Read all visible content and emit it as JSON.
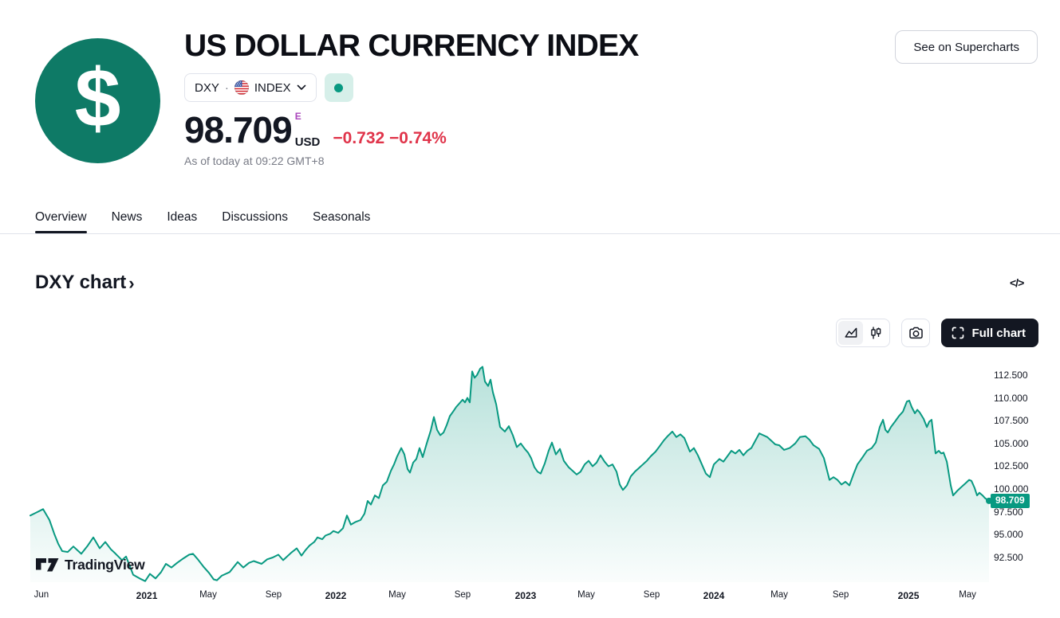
{
  "colors": {
    "accent": "#089981",
    "red": "#e0344a",
    "purple": "#ab47bc",
    "logo_bg": "#0e7a66"
  },
  "header": {
    "title": "US DOLLAR CURRENCY INDEX",
    "logo_symbol": "$",
    "symbol_button": {
      "ticker": "DXY",
      "separator": "·",
      "exchange": "INDEX"
    },
    "price": {
      "value": "98.709",
      "flag": "E",
      "currency": "USD",
      "change": "−0.732",
      "change_pct": "−0.74%"
    },
    "timestamp": "As of today at 09:22 GMT+8",
    "supercharts_label": "See on Supercharts"
  },
  "tabs": {
    "items": [
      "Overview",
      "News",
      "Ideas",
      "Discussions",
      "Seasonals"
    ],
    "active": "Overview"
  },
  "section": {
    "title": "DXY chart",
    "arrow": "›",
    "embed_icon": "</>"
  },
  "toolbar": {
    "full_chart_label": "Full chart"
  },
  "watermark": {
    "text": "TradingView"
  },
  "chart_data": {
    "type": "area",
    "symbol": "DXY",
    "title": "DXY chart",
    "x_range": [
      "2020-05",
      "2025-06"
    ],
    "ylim": [
      89.79,
      114.33
    ],
    "last_value": 98.709,
    "last_value_label": "98.709",
    "grid": false,
    "y_ticks": [
      {
        "label": "112.500",
        "v": 112.5
      },
      {
        "label": "110.000",
        "v": 110.0
      },
      {
        "label": "107.500",
        "v": 107.5
      },
      {
        "label": "105.000",
        "v": 105.0
      },
      {
        "label": "102.500",
        "v": 102.5
      },
      {
        "label": "100.000",
        "v": 100.0
      },
      {
        "label": "97.500",
        "v": 97.5
      },
      {
        "label": "95.000",
        "v": 95.0
      },
      {
        "label": "92.500",
        "v": 92.5
      }
    ],
    "x_ticks": [
      {
        "label": "Jun",
        "f": 0.0116
      },
      {
        "label": "2021",
        "f": 0.1215,
        "year": true
      },
      {
        "label": "May",
        "f": 0.1855
      },
      {
        "label": "Sep",
        "f": 0.2537
      },
      {
        "label": "2022",
        "f": 0.3186,
        "year": true
      },
      {
        "label": "May",
        "f": 0.3827
      },
      {
        "label": "Sep",
        "f": 0.4509
      },
      {
        "label": "2023",
        "f": 0.5166,
        "year": true
      },
      {
        "label": "May",
        "f": 0.5799
      },
      {
        "label": "Sep",
        "f": 0.6481
      },
      {
        "label": "2024",
        "f": 0.713,
        "year": true
      },
      {
        "label": "May",
        "f": 0.7812
      },
      {
        "label": "Sep",
        "f": 0.8453
      },
      {
        "label": "2025",
        "f": 0.916,
        "year": true
      },
      {
        "label": "May",
        "f": 0.9776
      }
    ],
    "points": [
      [
        0.0,
        97.1
      ],
      [
        0.0058,
        97.4
      ],
      [
        0.0133,
        97.8
      ],
      [
        0.02,
        96.6
      ],
      [
        0.025,
        95.1
      ],
      [
        0.0291,
        94.0
      ],
      [
        0.0333,
        93.2
      ],
      [
        0.0391,
        93.1
      ],
      [
        0.0449,
        93.7
      ],
      [
        0.0532,
        92.9
      ],
      [
        0.0599,
        93.8
      ],
      [
        0.0657,
        94.7
      ],
      [
        0.0724,
        93.5
      ],
      [
        0.0782,
        94.2
      ],
      [
        0.084,
        93.4
      ],
      [
        0.089,
        92.9
      ],
      [
        0.0957,
        92.2
      ],
      [
        0.0998,
        92.6
      ],
      [
        0.1073,
        90.6
      ],
      [
        0.114,
        90.2
      ],
      [
        0.1198,
        89.9
      ],
      [
        0.1248,
        90.7
      ],
      [
        0.1306,
        90.2
      ],
      [
        0.1364,
        90.9
      ],
      [
        0.1414,
        91.8
      ],
      [
        0.1472,
        91.4
      ],
      [
        0.1531,
        91.9
      ],
      [
        0.1597,
        92.4
      ],
      [
        0.1656,
        92.8
      ],
      [
        0.1697,
        92.9
      ],
      [
        0.1747,
        92.3
      ],
      [
        0.1805,
        91.5
      ],
      [
        0.1864,
        90.8
      ],
      [
        0.1913,
        90.1
      ],
      [
        0.1947,
        90.0
      ],
      [
        0.1997,
        90.5
      ],
      [
        0.208,
        90.9
      ],
      [
        0.2163,
        92.0
      ],
      [
        0.2221,
        91.4
      ],
      [
        0.228,
        91.9
      ],
      [
        0.233,
        92.1
      ],
      [
        0.2413,
        91.8
      ],
      [
        0.2471,
        92.3
      ],
      [
        0.2529,
        92.5
      ],
      [
        0.2587,
        92.8
      ],
      [
        0.2637,
        92.2
      ],
      [
        0.272,
        93.0
      ],
      [
        0.2779,
        93.5
      ],
      [
        0.2829,
        92.7
      ],
      [
        0.287,
        93.3
      ],
      [
        0.2912,
        93.8
      ],
      [
        0.2962,
        94.2
      ],
      [
        0.2995,
        94.7
      ],
      [
        0.3045,
        94.5
      ],
      [
        0.3078,
        94.9
      ],
      [
        0.3128,
        95.1
      ],
      [
        0.3161,
        95.4
      ],
      [
        0.3211,
        95.2
      ],
      [
        0.3261,
        95.7
      ],
      [
        0.3303,
        97.1
      ],
      [
        0.3344,
        96.1
      ],
      [
        0.3394,
        96.4
      ],
      [
        0.3444,
        96.6
      ],
      [
        0.3486,
        97.3
      ],
      [
        0.3519,
        98.7
      ],
      [
        0.3552,
        98.3
      ],
      [
        0.3594,
        99.3
      ],
      [
        0.3636,
        99.0
      ],
      [
        0.3677,
        100.4
      ],
      [
        0.3719,
        100.8
      ],
      [
        0.3761,
        102.0
      ],
      [
        0.3794,
        102.7
      ],
      [
        0.3827,
        103.6
      ],
      [
        0.3869,
        104.5
      ],
      [
        0.3902,
        103.8
      ],
      [
        0.3935,
        102.2
      ],
      [
        0.396,
        101.8
      ],
      [
        0.3993,
        102.9
      ],
      [
        0.4027,
        103.3
      ],
      [
        0.406,
        104.5
      ],
      [
        0.4093,
        103.5
      ],
      [
        0.4135,
        105.0
      ],
      [
        0.4176,
        106.4
      ],
      [
        0.421,
        107.9
      ],
      [
        0.4243,
        106.5
      ],
      [
        0.4276,
        105.9
      ],
      [
        0.431,
        106.2
      ],
      [
        0.4343,
        107.0
      ],
      [
        0.4376,
        108.0
      ],
      [
        0.441,
        108.5
      ],
      [
        0.4443,
        109.0
      ],
      [
        0.4476,
        109.4
      ],
      [
        0.4509,
        109.8
      ],
      [
        0.4534,
        109.5
      ],
      [
        0.4559,
        110.0
      ],
      [
        0.4584,
        109.5
      ],
      [
        0.4609,
        112.9
      ],
      [
        0.4634,
        112.2
      ],
      [
        0.4659,
        112.5
      ],
      [
        0.4692,
        113.2
      ],
      [
        0.4717,
        113.4
      ],
      [
        0.4742,
        111.8
      ],
      [
        0.4775,
        111.3
      ],
      [
        0.48,
        112.0
      ],
      [
        0.4825,
        110.6
      ],
      [
        0.4859,
        109.3
      ],
      [
        0.49,
        106.8
      ],
      [
        0.495,
        106.3
      ],
      [
        0.4992,
        106.9
      ],
      [
        0.5033,
        105.9
      ],
      [
        0.5075,
        104.6
      ],
      [
        0.5116,
        105.0
      ],
      [
        0.5158,
        104.4
      ],
      [
        0.5191,
        104.0
      ],
      [
        0.5224,
        103.4
      ],
      [
        0.5258,
        102.4
      ],
      [
        0.5291,
        101.9
      ],
      [
        0.5324,
        101.7
      ],
      [
        0.5366,
        102.8
      ],
      [
        0.5407,
        104.2
      ],
      [
        0.5441,
        105.1
      ],
      [
        0.5482,
        103.8
      ],
      [
        0.5524,
        104.4
      ],
      [
        0.5565,
        103.1
      ],
      [
        0.5615,
        102.4
      ],
      [
        0.5657,
        102.0
      ],
      [
        0.5699,
        101.6
      ],
      [
        0.574,
        101.9
      ],
      [
        0.5782,
        102.7
      ],
      [
        0.5824,
        103.1
      ],
      [
        0.5865,
        102.5
      ],
      [
        0.5907,
        102.9
      ],
      [
        0.5948,
        103.7
      ],
      [
        0.599,
        103.0
      ],
      [
        0.6031,
        102.5
      ],
      [
        0.6073,
        102.7
      ],
      [
        0.6115,
        101.9
      ],
      [
        0.6148,
        100.5
      ],
      [
        0.6181,
        99.9
      ],
      [
        0.6223,
        100.4
      ],
      [
        0.6264,
        101.4
      ],
      [
        0.6306,
        101.9
      ],
      [
        0.6348,
        102.3
      ],
      [
        0.6389,
        102.7
      ],
      [
        0.6431,
        103.1
      ],
      [
        0.6472,
        103.6
      ],
      [
        0.6522,
        104.1
      ],
      [
        0.6564,
        104.7
      ],
      [
        0.6606,
        105.3
      ],
      [
        0.6647,
        105.8
      ],
      [
        0.6697,
        106.3
      ],
      [
        0.6739,
        105.7
      ],
      [
        0.678,
        106.0
      ],
      [
        0.6822,
        105.6
      ],
      [
        0.688,
        104.1
      ],
      [
        0.6922,
        104.5
      ],
      [
        0.6963,
        103.7
      ],
      [
        0.7005,
        102.7
      ],
      [
        0.7047,
        101.7
      ],
      [
        0.7088,
        101.3
      ],
      [
        0.713,
        102.7
      ],
      [
        0.7188,
        103.3
      ],
      [
        0.723,
        103.0
      ],
      [
        0.7271,
        103.6
      ],
      [
        0.7313,
        104.2
      ],
      [
        0.7354,
        103.9
      ],
      [
        0.7396,
        104.3
      ],
      [
        0.7438,
        103.7
      ],
      [
        0.7479,
        104.2
      ],
      [
        0.7521,
        104.5
      ],
      [
        0.7562,
        105.3
      ],
      [
        0.7604,
        106.1
      ],
      [
        0.7646,
        105.9
      ],
      [
        0.7687,
        105.7
      ],
      [
        0.7729,
        105.3
      ],
      [
        0.777,
        104.9
      ],
      [
        0.7812,
        104.8
      ],
      [
        0.7862,
        104.3
      ],
      [
        0.792,
        104.5
      ],
      [
        0.7978,
        105.0
      ],
      [
        0.8028,
        105.7
      ],
      [
        0.8086,
        105.8
      ],
      [
        0.8128,
        105.4
      ],
      [
        0.817,
        104.8
      ],
      [
        0.8228,
        104.4
      ],
      [
        0.8278,
        103.4
      ],
      [
        0.8336,
        101.0
      ],
      [
        0.8378,
        101.3
      ],
      [
        0.8419,
        101.0
      ],
      [
        0.8461,
        100.5
      ],
      [
        0.8502,
        100.8
      ],
      [
        0.8544,
        100.4
      ],
      [
        0.8586,
        101.6
      ],
      [
        0.8627,
        102.7
      ],
      [
        0.8669,
        103.3
      ],
      [
        0.8727,
        104.2
      ],
      [
        0.8777,
        104.5
      ],
      [
        0.8819,
        105.1
      ],
      [
        0.886,
        106.8
      ],
      [
        0.8894,
        107.6
      ],
      [
        0.8919,
        106.5
      ],
      [
        0.8944,
        106.2
      ],
      [
        0.8977,
        106.8
      ],
      [
        0.9019,
        107.4
      ],
      [
        0.906,
        108.0
      ],
      [
        0.9102,
        108.5
      ],
      [
        0.9143,
        109.6
      ],
      [
        0.9168,
        109.7
      ],
      [
        0.9193,
        109.0
      ],
      [
        0.9227,
        108.3
      ],
      [
        0.9252,
        108.7
      ],
      [
        0.9277,
        108.4
      ],
      [
        0.9318,
        107.7
      ],
      [
        0.9352,
        106.8
      ],
      [
        0.9377,
        107.4
      ],
      [
        0.9401,
        107.6
      ],
      [
        0.9443,
        103.9
      ],
      [
        0.9476,
        104.2
      ],
      [
        0.9501,
        103.9
      ],
      [
        0.9526,
        104.0
      ],
      [
        0.956,
        103.0
      ],
      [
        0.9601,
        100.4
      ],
      [
        0.9626,
        99.3
      ],
      [
        0.9668,
        99.8
      ],
      [
        0.9709,
        100.2
      ],
      [
        0.9751,
        100.6
      ],
      [
        0.9792,
        101.0
      ],
      [
        0.9817,
        100.9
      ],
      [
        0.985,
        100.1
      ],
      [
        0.9875,
        99.3
      ],
      [
        0.99,
        99.6
      ],
      [
        0.9933,
        99.3
      ],
      [
        0.9958,
        99.0
      ],
      [
        1.0,
        98.709
      ]
    ]
  }
}
